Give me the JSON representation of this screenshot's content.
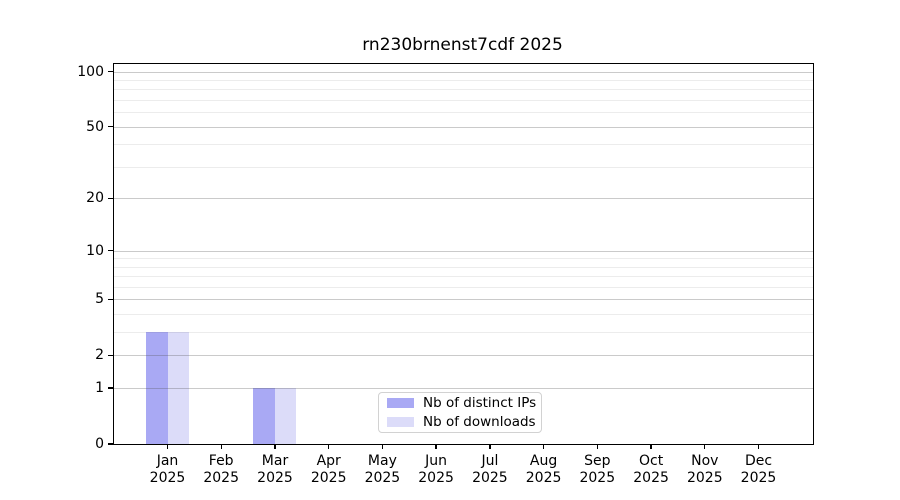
{
  "title": "rn230brnenst7cdf 2025",
  "chart_data": {
    "type": "bar",
    "title": "rn230brnenst7cdf 2025",
    "categories": [
      "Jan",
      "Feb",
      "Mar",
      "Apr",
      "May",
      "Jun",
      "Jul",
      "Aug",
      "Sep",
      "Oct",
      "Nov",
      "Dec"
    ],
    "category_sublabel": "2025",
    "series": [
      {
        "name": "Nb of distinct IPs",
        "color": "#a9a9f4",
        "values": [
          3,
          0,
          1,
          0,
          0,
          0,
          0,
          0,
          0,
          0,
          0,
          0
        ]
      },
      {
        "name": "Nb of downloads",
        "color": "#dcdcf9",
        "values": [
          3,
          0,
          1,
          0,
          0,
          0,
          0,
          0,
          0,
          0,
          0,
          0
        ]
      }
    ],
    "xlabel": "",
    "ylabel": "",
    "y_scale": "log10(1+x)",
    "ylim": [
      0,
      110
    ],
    "y_ticks": [
      0,
      1,
      2,
      5,
      10,
      20,
      50,
      100
    ],
    "y_minor_ticks": [
      3,
      4,
      6,
      7,
      8,
      9,
      30,
      40,
      60,
      70,
      80,
      90
    ],
    "grid": "horizontal",
    "legend_position": "bottom-center"
  },
  "colors": {
    "bar_distinct_ips": "#a9a9f4",
    "bar_downloads": "#dcdcf9",
    "major_gridline": "#cccccc",
    "minor_gridline": "#ececec",
    "axis": "#000000",
    "background": "#ffffff"
  }
}
